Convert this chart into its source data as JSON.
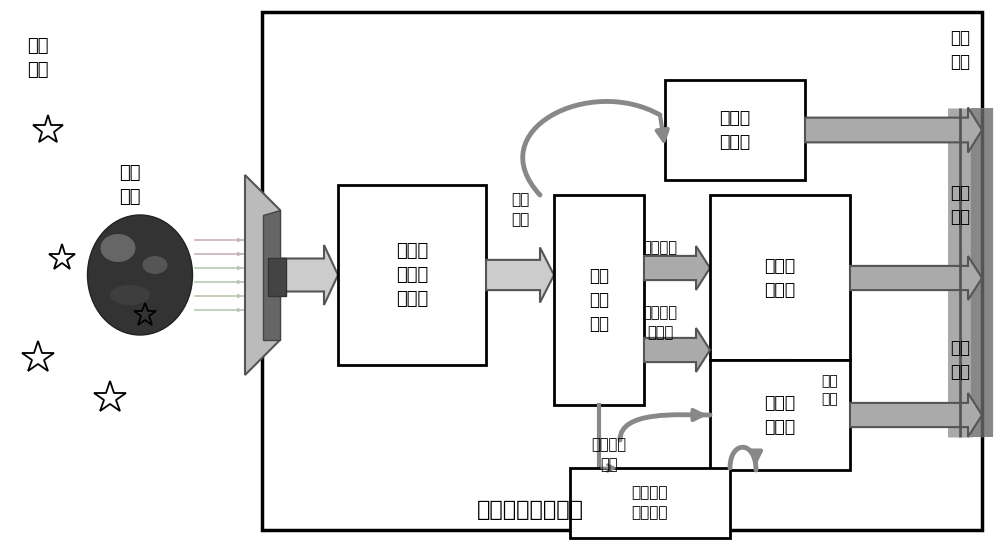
{
  "bg_color": "#ffffff",
  "title_bottom": "多功能光学敏感器",
  "label_bg_star": "背景\n恒星",
  "label_target": "目标\n天体",
  "label_raw_image": "原始\n图像",
  "box_exposure": "高动态\n范围曝\n光模块",
  "box_image_proc": "图像\n处理\n模块",
  "box_compress": "图像压\n缩模块",
  "box_attitude": "姿态解\n算模块",
  "box_navigation": "自主导\n航模块",
  "box_ephemeris": "天体目标\n星历信息",
  "label_star_centroid": "星点质心",
  "label_celestial_centroid": "天体质心\n视半径",
  "label_celestial_pos": "天体目标\n位置",
  "label_attitude_data": "姿态\n数据",
  "out_image": "图像\n输出",
  "out_attitude": "飞船\n姿态",
  "out_position": "飞船\n位置",
  "ray_colors": [
    "#d4b8c8",
    "#d4b8c8",
    "#c8d4b8",
    "#c8d4b8",
    "#c8d4b8",
    "#c8d4b8"
  ],
  "gray_arrow": "#bbbbbb",
  "dark_gray": "#555555",
  "med_gray": "#888888",
  "light_gray": "#cccccc"
}
